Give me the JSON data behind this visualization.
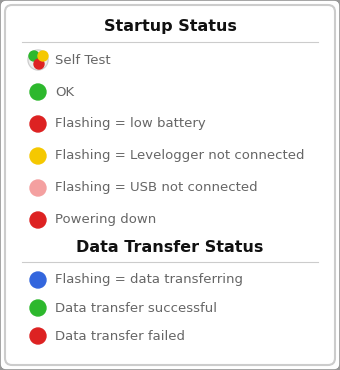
{
  "title1": "Startup Status",
  "title2": "Data Transfer Status",
  "background_color": "#ffffff",
  "border_color_outer": "#999999",
  "border_color_inner": "#cccccc",
  "title_fontsize": 11.5,
  "item_fontsize": 9.5,
  "text_color": "#666666",
  "startup_items": [
    {
      "label": "Self Test",
      "color": "self_test"
    },
    {
      "label": "OK",
      "color": "#2db82d"
    },
    {
      "label": "Flashing = low battery",
      "color": "#dd2222"
    },
    {
      "label": "Flashing = Levelogger not connected",
      "color": "#f5c800"
    },
    {
      "label": "Flashing = USB not connected",
      "color": "#f4a0a0"
    },
    {
      "label": "Powering down",
      "color": "#dd2222"
    }
  ],
  "transfer_items": [
    {
      "label": "Flashing = data transferring",
      "color": "#3366dd"
    },
    {
      "label": "Data transfer successful",
      "color": "#2db82d"
    },
    {
      "label": "Data transfer failed",
      "color": "#dd2222"
    }
  ]
}
